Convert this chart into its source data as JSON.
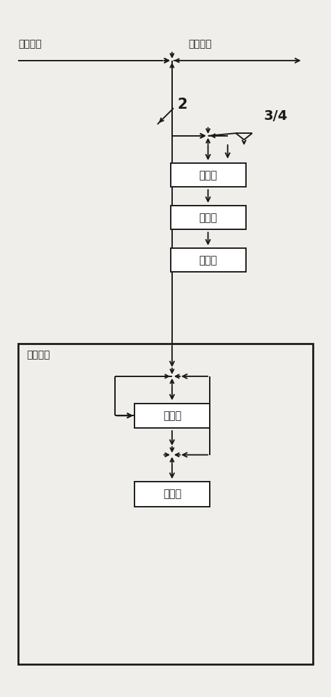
{
  "fig_width": 4.75,
  "fig_height": 10.0,
  "dpi": 100,
  "bg_color": "#f0eeea",
  "line_color": "#1a1a1a",
  "box_fill": "#ffffff",
  "text_color": "#111111",
  "label_fanying": "反应尾气",
  "label_weiqifangkong": "尾气放空",
  "label_2": "2",
  "label_34": "3/4",
  "label_zhipu": "质谱仪",
  "label_fenzi1": "分子泵",
  "label_chuji1": "初级泵",
  "label_weifen": "微分泵组",
  "label_fenzi2": "分子泵",
  "label_chuji2": "初级泵"
}
